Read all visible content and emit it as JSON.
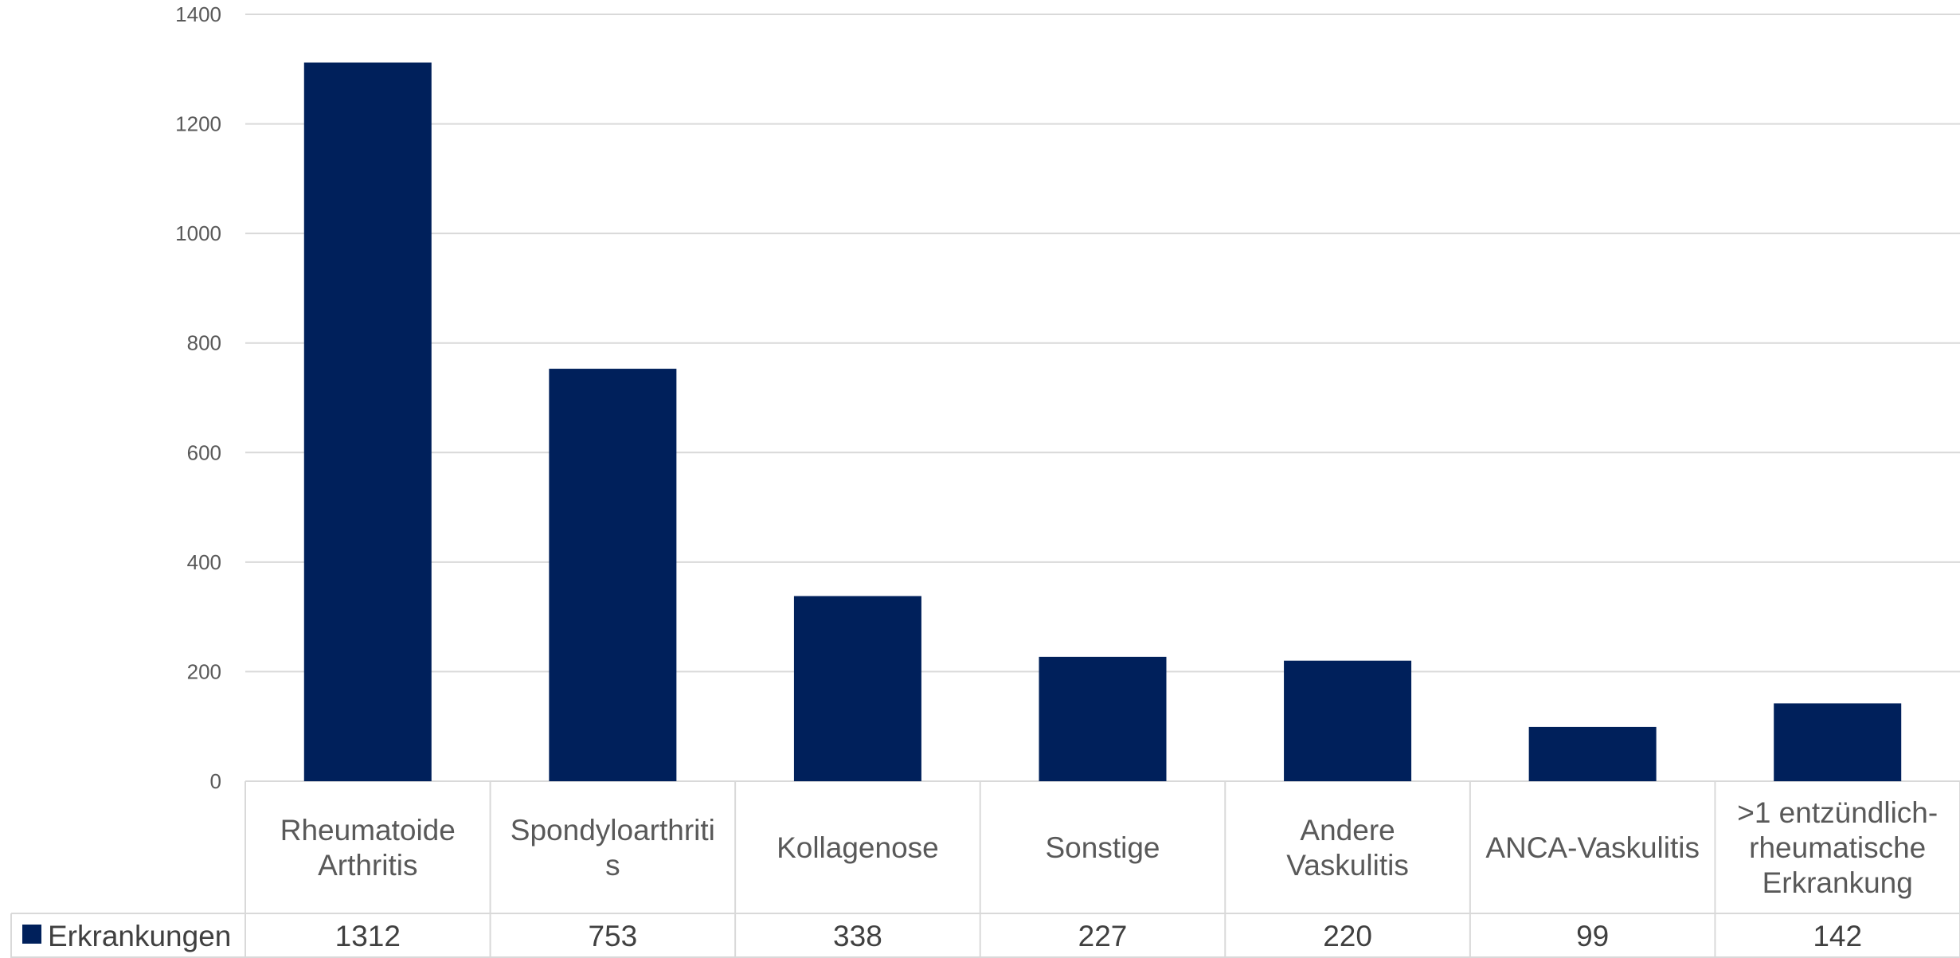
{
  "colors": {
    "bar": "#00205B",
    "grid": "#D9D9D9",
    "text": "#595959"
  },
  "chart_data": {
    "type": "bar",
    "title": "",
    "xlabel": "",
    "ylabel": "",
    "ylim": [
      0,
      1400
    ],
    "yticks": [
      0,
      200,
      400,
      600,
      800,
      1000,
      1200,
      1400
    ],
    "grid": true,
    "legend_placement": "data-table-left",
    "categories": [
      [
        "Rheumatoide",
        "Arthritis"
      ],
      [
        "Spondyloarthriti",
        "s"
      ],
      [
        "Kollagenose"
      ],
      [
        "Sonstige"
      ],
      [
        "Andere",
        "Vaskulitis"
      ],
      [
        "ANCA-Vaskulitis"
      ],
      [
        ">1 entzündlich-",
        "rheumatische",
        "Erkrankung"
      ]
    ],
    "series": [
      {
        "name": "Erkrankungen",
        "color": "#00205B",
        "values": [
          1312,
          753,
          338,
          227,
          220,
          99,
          142
        ]
      }
    ]
  }
}
